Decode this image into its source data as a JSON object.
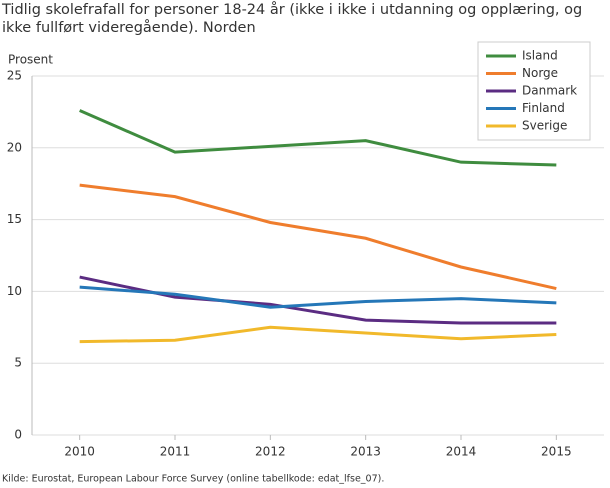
{
  "chart_data": {
    "type": "line",
    "title": "Tidlig skolefrafall for personer 18-24 år (ikke i ikke i utdanning og opplæring, og ikke fullført videregående). Norden",
    "y_label": "Prosent",
    "source": "Kilde: Eurostat, European Labour Force Survey (online tabellkode: edat_lfse_07).",
    "x": [
      2010,
      2011,
      2012,
      2013,
      2014,
      2015
    ],
    "xlim": [
      2009.5,
      2015.5
    ],
    "xticks": [
      2010,
      2011,
      2012,
      2013,
      2014,
      2015
    ],
    "ylim": [
      0,
      25
    ],
    "yticks": [
      0,
      5,
      10,
      15,
      20,
      25
    ],
    "grid": true,
    "legend": "upper right",
    "series": [
      {
        "name": "Island",
        "color": "#3f8c3f",
        "values": [
          22.6,
          19.7,
          20.1,
          20.5,
          19.0,
          18.8
        ]
      },
      {
        "name": "Norge",
        "color": "#ef7d2d",
        "values": [
          17.4,
          16.6,
          14.8,
          13.7,
          11.7,
          10.2
        ]
      },
      {
        "name": "Danmark",
        "color": "#5b2c82",
        "values": [
          11.0,
          9.6,
          9.1,
          8.0,
          7.8,
          7.8
        ]
      },
      {
        "name": "Finland",
        "color": "#2577b8",
        "values": [
          10.3,
          9.8,
          8.9,
          9.3,
          9.5,
          9.2
        ]
      },
      {
        "name": "Sverige",
        "color": "#f1b92b",
        "values": [
          6.5,
          6.6,
          7.5,
          7.1,
          6.7,
          7.0
        ]
      }
    ]
  }
}
